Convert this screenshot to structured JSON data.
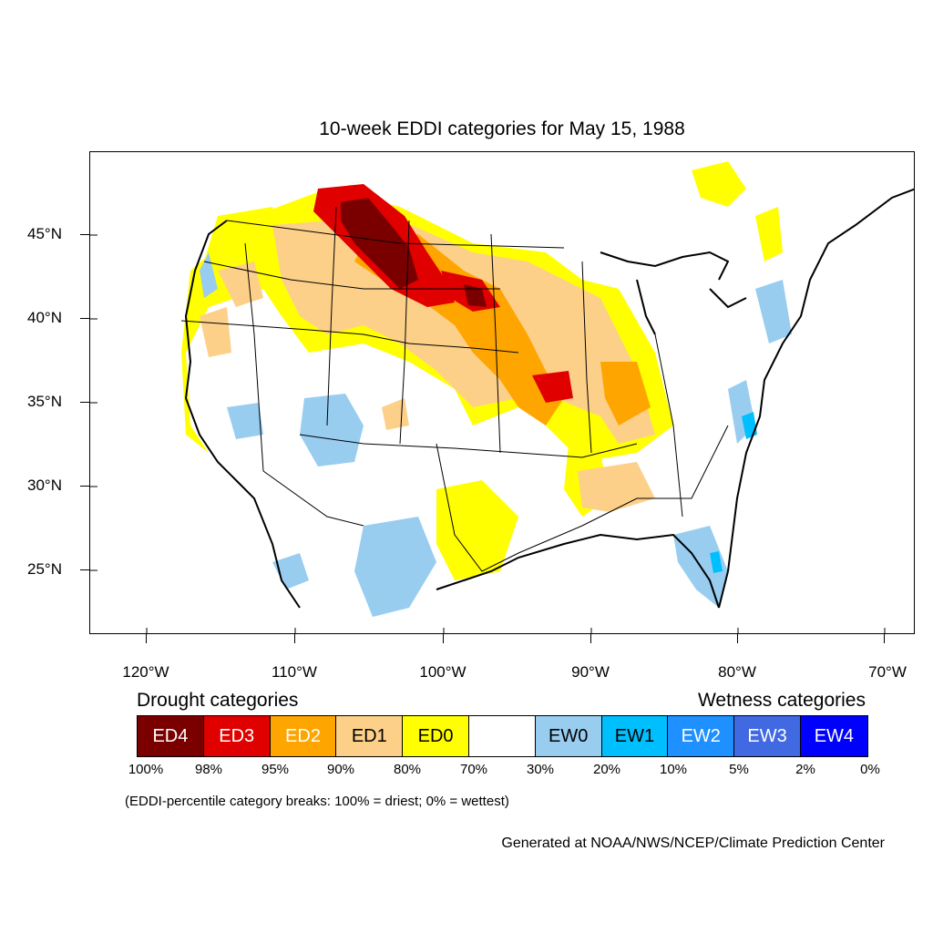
{
  "title": "10-week EDDI categories for May 15, 1988",
  "map": {
    "lat_labels": [
      "45°N",
      "40°N",
      "35°N",
      "30°N",
      "25°N"
    ],
    "lon_labels": [
      "120°W",
      "110°W",
      "100°W",
      "90°W",
      "80°W",
      "70°W"
    ],
    "colors": {
      "ED4": "#7a0000",
      "ED3": "#e00000",
      "ED2": "#ffa500",
      "ED1": "#fdd08a",
      "ED0": "#ffff00",
      "EW0": "#98cdf0",
      "EW1": "#00bfff",
      "EW2": "#1e90ff",
      "EW3": "#4169e1",
      "EW4": "#0000ff"
    }
  },
  "legend": {
    "drought_heading": "Drought categories",
    "wetness_heading": "Wetness categories",
    "categories": [
      {
        "label": "ED4",
        "color": "#7a0000",
        "text_color": "#ffffff"
      },
      {
        "label": "ED3",
        "color": "#e00000",
        "text_color": "#ffffff"
      },
      {
        "label": "ED2",
        "color": "#ffa500",
        "text_color": "#ffffff"
      },
      {
        "label": "ED1",
        "color": "#fdd08a",
        "text_color": "#000000"
      },
      {
        "label": "ED0",
        "color": "#ffff00",
        "text_color": "#000000"
      },
      {
        "label": "",
        "color": "#ffffff",
        "text_color": "#000000"
      },
      {
        "label": "EW0",
        "color": "#98cdf0",
        "text_color": "#000000"
      },
      {
        "label": "EW1",
        "color": "#00bfff",
        "text_color": "#000000"
      },
      {
        "label": "EW2",
        "color": "#1e90ff",
        "text_color": "#ffffff"
      },
      {
        "label": "EW3",
        "color": "#4169e1",
        "text_color": "#ffffff"
      },
      {
        "label": "EW4",
        "color": "#0000ff",
        "text_color": "#ffffff"
      }
    ],
    "percentiles": [
      "100%",
      "98%",
      "95%",
      "90%",
      "80%",
      "70%",
      "30%",
      "20%",
      "10%",
      "5%",
      "2%",
      "0%"
    ],
    "note": "(EDDI-percentile category breaks: 100% = driest; 0% = wettest)"
  },
  "credit": "Generated at NOAA/NWS/NCEP/Climate Prediction Center"
}
